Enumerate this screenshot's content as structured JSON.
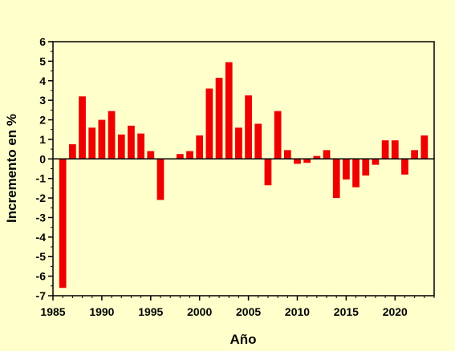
{
  "chart_data": {
    "type": "bar",
    "title": "",
    "xlabel": "Año",
    "ylabel": "Incremento en %",
    "bar_color": "#ee0000",
    "background_color": "#ffffcc",
    "grid": false,
    "xlim": [
      1985,
      2024
    ],
    "ylim": [
      -7,
      6
    ],
    "x_ticks": [
      "1985",
      "1990",
      "1995",
      "2000",
      "2005",
      "2010",
      "2015",
      "2020"
    ],
    "y_ticks": [
      "6",
      "5",
      "4",
      "3",
      "2",
      "1",
      "0",
      "-1",
      "-2",
      "-3",
      "-4",
      "-5",
      "-6",
      "-7"
    ],
    "categories": [
      1986,
      1987,
      1988,
      1989,
      1990,
      1991,
      1992,
      1993,
      1994,
      1995,
      1996,
      1997,
      1998,
      1999,
      2000,
      2001,
      2002,
      2003,
      2004,
      2005,
      2006,
      2007,
      2008,
      2009,
      2010,
      2011,
      2012,
      2013,
      2014,
      2015,
      2016,
      2017,
      2018,
      2019,
      2020,
      2021,
      2022,
      2023
    ],
    "values": [
      -6.6,
      0.75,
      3.2,
      1.6,
      2.0,
      2.45,
      1.25,
      1.7,
      1.3,
      0.4,
      -2.1,
      0.0,
      0.25,
      0.4,
      1.2,
      3.6,
      4.15,
      4.95,
      1.6,
      3.25,
      1.8,
      -1.35,
      2.45,
      0.45,
      -0.25,
      -0.2,
      0.15,
      0.45,
      -2.0,
      -1.05,
      -1.45,
      -0.85,
      -0.3,
      0.95,
      0.95,
      -0.8,
      0.45,
      1.2
    ]
  }
}
